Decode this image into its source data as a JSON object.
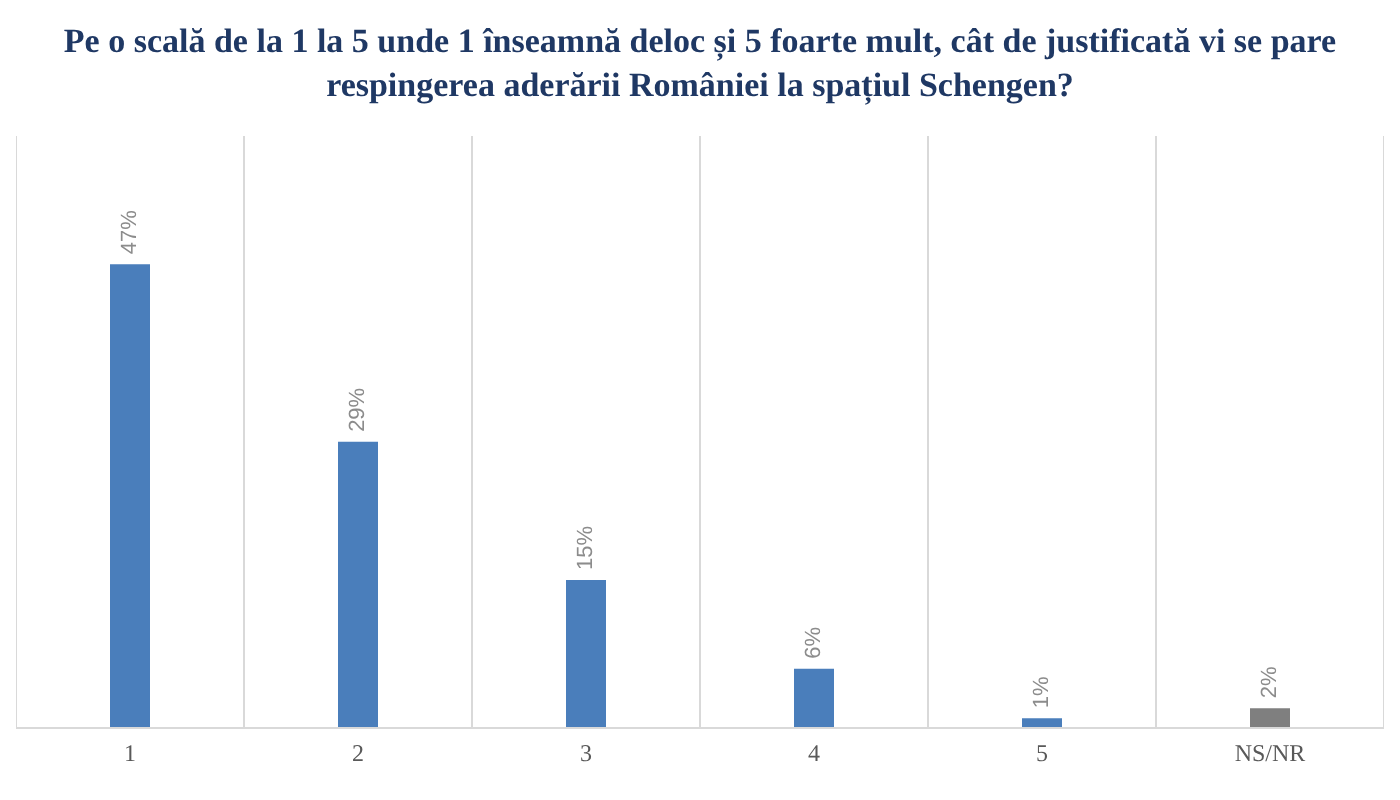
{
  "chart_data": {
    "type": "bar",
    "title": "Pe o scală de la 1 la 5 unde 1 înseamnă deloc și 5 foarte mult, cât de justificată vi se pare respingerea aderării României la spațiul Schengen?",
    "categories": [
      "1",
      "2",
      "3",
      "4",
      "5",
      "NS/NR"
    ],
    "values": [
      47,
      29,
      15,
      6,
      1,
      2
    ],
    "colors": [
      "#4a7ebb",
      "#4a7ebb",
      "#4a7ebb",
      "#4a7ebb",
      "#4a7ebb",
      "#7f7f7f"
    ],
    "value_labels": [
      "47%",
      "29%",
      "15%",
      "6%",
      "1%",
      "2%"
    ],
    "grid": "x",
    "tick_labels": "x"
  }
}
